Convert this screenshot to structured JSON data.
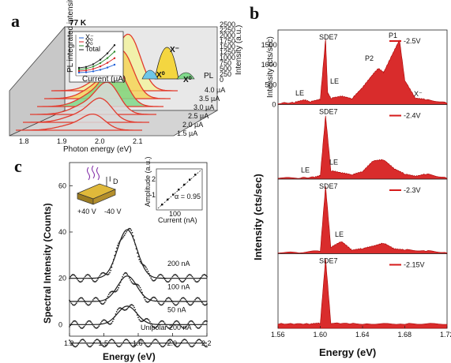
{
  "chart_data": [
    {
      "panel": "a",
      "type": "line",
      "temperature_label": "77 K",
      "xlabel": "Photon energy (eV)",
      "ylabel": "Intensity (a.u.)",
      "x_ticks": [
        "1.8",
        "1.9",
        "2.0",
        "2.1"
      ],
      "z_ticks": [
        "0",
        "250",
        "500",
        "750",
        "1000",
        "1250",
        "1500",
        "1750",
        "2000",
        "2250",
        "2500"
      ],
      "zlim": [
        0,
        2500
      ],
      "depth_label": "PL",
      "currents": [
        "1.5 µA",
        "2.0 µA",
        "2.5 µA",
        "3.0 µA",
        "3.5 µA",
        "4.0 µA"
      ],
      "peak_labels": [
        "X⁻",
        "X⁰",
        "X⁰"
      ],
      "inset": {
        "xlabel": "Current (µA)",
        "ylabel": "PL integrated intensity (a.u.)",
        "series": [
          "X⁻",
          "X⁰",
          "X⁰",
          "Total"
        ],
        "colors": [
          "#1f5fd6",
          "#d62020",
          "#2b8a2b",
          "#1a1a1a"
        ]
      }
    },
    {
      "panel": "b",
      "type": "area",
      "xlabel": "Energy (eV)",
      "ylabel": "Intensity (cts/sec)",
      "top_ylabel": "Intensity (cts/sec)",
      "xlim": [
        1.56,
        1.72
      ],
      "x_ticks": [
        "1.56",
        "1.60",
        "1.64",
        "1.68",
        "1.72"
      ],
      "top_ylim": [
        0,
        1800
      ],
      "top_y_ticks": [
        "0",
        "500",
        "1000",
        "1500"
      ],
      "color": "#d61a1a",
      "sub_panels": [
        {
          "voltage": "-2.5V",
          "labels": [
            "SDE7",
            "P1",
            "P2",
            "LE",
            "LE",
            "X⁻"
          ],
          "x": [
            1.56,
            1.575,
            1.585,
            1.59,
            1.6,
            1.605,
            1.607,
            1.61,
            1.62,
            1.63,
            1.64,
            1.65,
            1.655,
            1.66,
            1.67,
            1.675,
            1.68,
            1.69,
            1.7,
            1.72
          ],
          "y": [
            20,
            40,
            110,
            60,
            120,
            1650,
            280,
            150,
            200,
            140,
            420,
            760,
            900,
            800,
            1350,
            1620,
            600,
            150,
            120,
            30
          ]
        },
        {
          "voltage": "-2.4V",
          "labels": [
            "SDE7",
            "LE",
            "LE"
          ],
          "x": [
            1.56,
            1.58,
            1.595,
            1.6,
            1.605,
            1.61,
            1.62,
            1.63,
            1.64,
            1.65,
            1.66,
            1.67,
            1.68,
            1.69,
            1.7,
            1.72
          ],
          "y": [
            20,
            20,
            40,
            80,
            1600,
            200,
            150,
            100,
            180,
            450,
            480,
            250,
            120,
            60,
            120,
            20
          ]
        },
        {
          "voltage": "-2.3V",
          "labels": [
            "SDE7",
            "LE"
          ],
          "x": [
            1.56,
            1.58,
            1.6,
            1.605,
            1.61,
            1.62,
            1.63,
            1.64,
            1.65,
            1.66,
            1.67,
            1.68,
            1.7,
            1.72
          ],
          "y": [
            20,
            20,
            60,
            1700,
            150,
            300,
            80,
            120,
            180,
            260,
            110,
            90,
            60,
            20
          ]
        },
        {
          "voltage": "-2.15V",
          "labels": [
            "SDE7"
          ],
          "x": [
            1.56,
            1.59,
            1.6,
            1.605,
            1.61,
            1.64,
            1.68,
            1.72
          ],
          "y": [
            100,
            100,
            120,
            1750,
            120,
            100,
            100,
            100
          ]
        }
      ]
    },
    {
      "panel": "c",
      "type": "scatter",
      "xlabel": "Energy (eV)",
      "ylabel": "Spectral Intensity (Counts)",
      "xlim": [
        1.2,
        2.2
      ],
      "ylim": [
        -5,
        70
      ],
      "x_ticks": [
        "1.2",
        "1.5",
        "1.6",
        "2.0",
        "2.2"
      ],
      "y_ticks": [
        "0",
        "20",
        "40",
        "60"
      ],
      "series": [
        {
          "name": "200 nA",
          "offset": 20,
          "amplitude": 21,
          "center": 1.62,
          "width": 0.07
        },
        {
          "name": "100 nA",
          "offset": 10,
          "amplitude": 11,
          "center": 1.62,
          "width": 0.07
        },
        {
          "name": "50 nA",
          "offset": 0,
          "amplitude": 8,
          "center": 1.62,
          "width": 0.07
        },
        {
          "name": "Unipolar 200 nA",
          "offset": -8,
          "amplitude": 0,
          "center": 1.62,
          "width": 0.07
        }
      ],
      "inset": {
        "voltages": [
          "+40 V",
          "-40 V"
        ],
        "alpha_label": "α = 0.95",
        "xlabel": "Current (nA)",
        "ylabel": "Amplitude (a.u.)",
        "x_ticks": [
          "100"
        ],
        "y_ticks": [
          "1",
          "2"
        ],
        "emission_label": "I",
        "emission_sub": "D"
      }
    }
  ]
}
